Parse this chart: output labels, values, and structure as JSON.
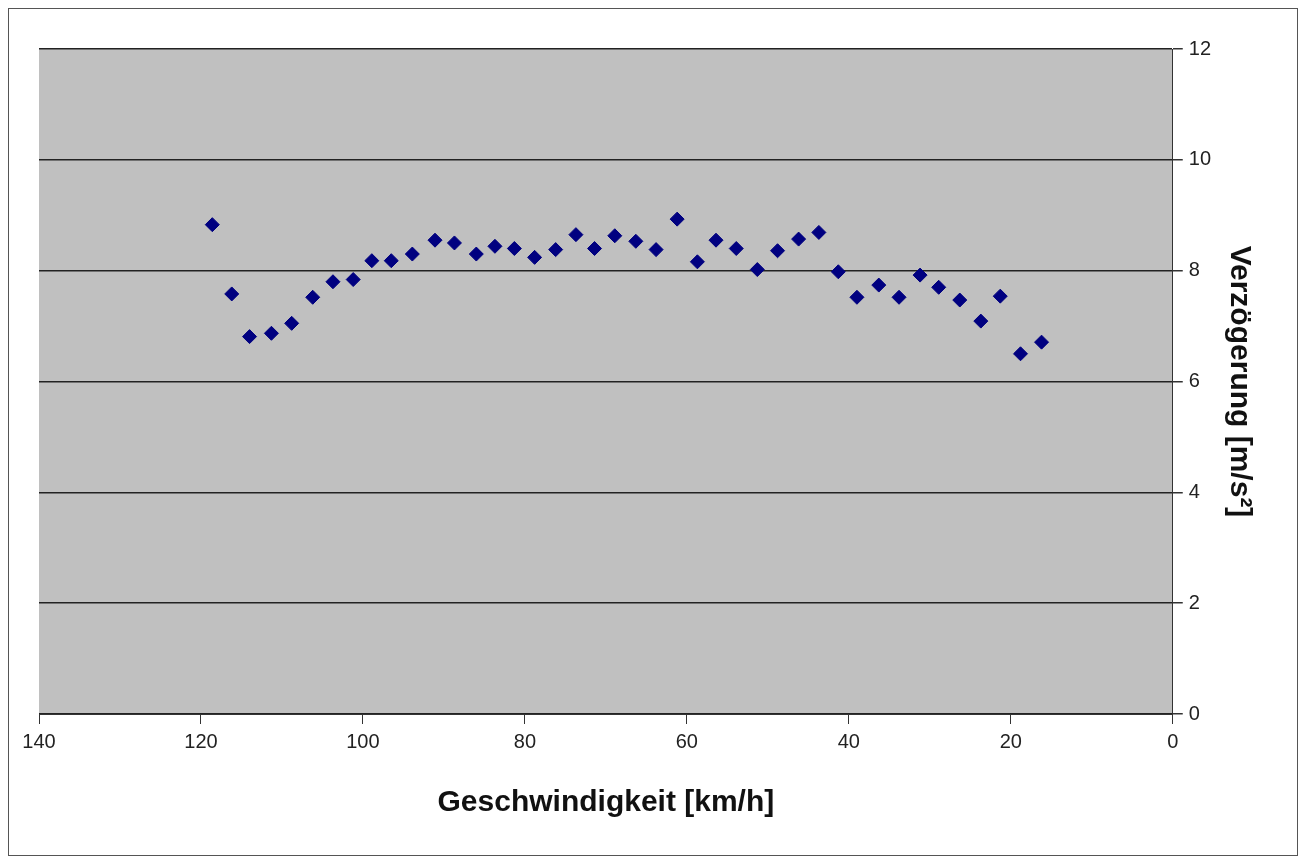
{
  "chart_data": {
    "type": "scatter",
    "xlabel": "Geschwindigkeit [km/h]",
    "ylabel": "Verzögerung [m/s²]",
    "x": [
      118.6,
      116.2,
      114.0,
      111.3,
      108.8,
      106.2,
      103.7,
      101.2,
      98.9,
      96.5,
      93.9,
      91.1,
      88.7,
      86.0,
      83.7,
      81.3,
      78.8,
      76.2,
      73.7,
      71.4,
      68.9,
      66.3,
      63.8,
      61.2,
      58.7,
      56.4,
      53.9,
      51.3,
      48.8,
      46.2,
      43.7,
      41.3,
      39.0,
      36.3,
      33.8,
      31.2,
      28.9,
      26.3,
      23.7,
      21.3,
      18.8,
      16.2
    ],
    "values": [
      8.83,
      7.58,
      6.81,
      6.87,
      7.05,
      7.52,
      7.8,
      7.84,
      8.18,
      8.18,
      8.3,
      8.55,
      8.5,
      8.3,
      8.44,
      8.4,
      8.24,
      8.38,
      8.65,
      8.4,
      8.63,
      8.53,
      8.38,
      8.93,
      8.16,
      8.55,
      8.4,
      8.02,
      8.36,
      8.57,
      8.69,
      7.98,
      7.52,
      7.74,
      7.52,
      7.92,
      7.7,
      7.47,
      7.09,
      7.54,
      6.5,
      6.71
    ],
    "color": "#000080",
    "marker": "diamond",
    "xlim": [
      140,
      0
    ],
    "xticks": [
      140,
      120,
      100,
      80,
      60,
      40,
      20,
      0
    ],
    "ylim": [
      0,
      12
    ],
    "yticks": [
      0,
      2,
      4,
      6,
      8,
      10,
      12
    ],
    "grid": "y",
    "legend": false
  }
}
